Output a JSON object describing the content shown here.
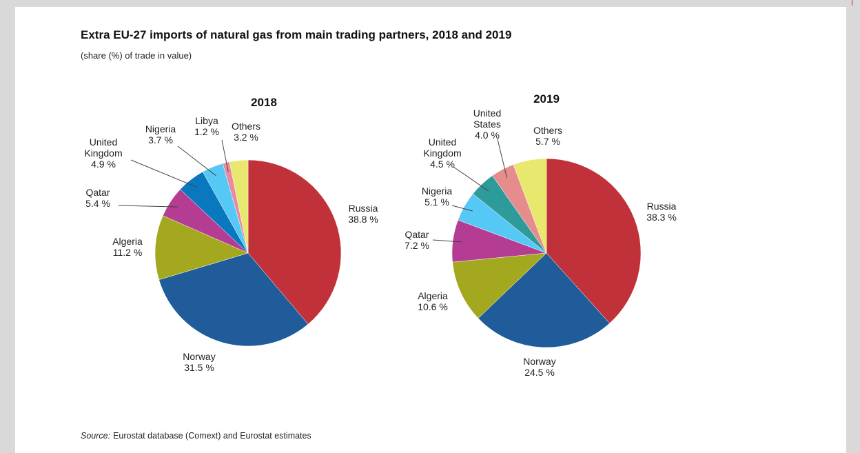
{
  "chart_data": [
    {
      "type": "pie",
      "title": "Extra EU-27 imports of natural gas from main trading partners, 2018 and 2019",
      "subtitle": "(share (%) of trade in value)",
      "source_label": "Source:",
      "source": "Eurostat database (Comext) and Eurostat estimates",
      "chart_title": "2018",
      "categories": [
        "Russia",
        "Norway",
        "Algeria",
        "Qatar",
        "United Kingdom",
        "Nigeria",
        "Libya",
        "Others"
      ],
      "values": [
        38.8,
        31.5,
        11.2,
        5.4,
        4.9,
        3.7,
        1.2,
        3.2
      ],
      "value_labels": [
        "38.8 %",
        "31.5 %",
        "11.2 %",
        "5.4 %",
        "4.9 %",
        "3.7 %",
        "1.2 %",
        "3.2 %"
      ],
      "colors": [
        "#c0313a",
        "#1f5c99",
        "#a3a81e",
        "#b53c93",
        "#0a78bf",
        "#55c8f5",
        "#e68ca0",
        "#e8e86e"
      ]
    },
    {
      "type": "pie",
      "chart_title": "2019",
      "categories": [
        "Russia",
        "Norway",
        "Algeria",
        "Qatar",
        "Nigeria",
        "United Kingdom",
        "United States",
        "Others"
      ],
      "values": [
        38.3,
        24.5,
        10.6,
        7.2,
        5.1,
        4.5,
        4.0,
        5.7
      ],
      "value_labels": [
        "38.3 %",
        "24.5 %",
        "10.6 %",
        "7.2 %",
        "5.1 %",
        "4.5 %",
        "4.0 %",
        "5.7 %"
      ],
      "colors": [
        "#c0313a",
        "#1f5c99",
        "#a3a81e",
        "#b53c93",
        "#55c8f5",
        "#2e9b9b",
        "#e68c8c",
        "#e8e86e"
      ]
    }
  ]
}
